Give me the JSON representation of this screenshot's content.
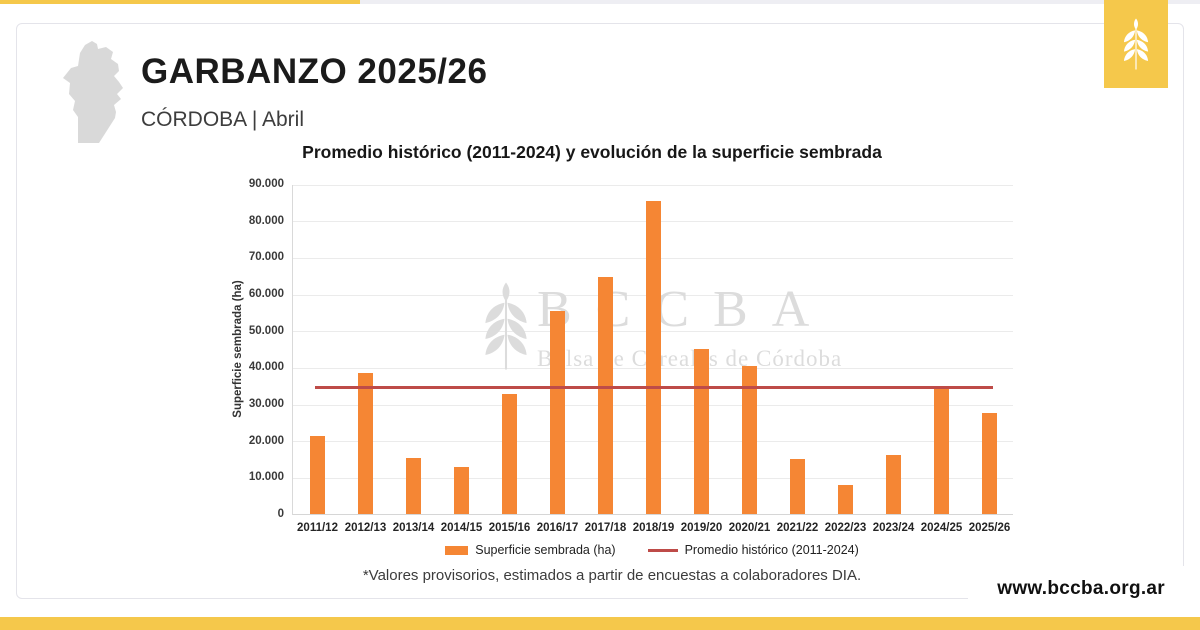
{
  "header": {
    "title": "GARBANZO 2025/26",
    "subtitle": "CÓRDOBA | Abril"
  },
  "watermark": {
    "acronym": "BCCBA",
    "name": "Bolsa de Cereales de Córdoba"
  },
  "footnote": "*Valores provisorios, estimados a partir de encuestas a colaboradores DIA.",
  "page": {
    "website": "www.bccba.org.ar"
  },
  "colors": {
    "brand_yellow": "#F5C84B",
    "bar_orange": "#F58634",
    "avg_line_red": "#BE4B48",
    "map_gray": "#D9D9D9",
    "watermark_gray": "#DCDCDC"
  },
  "chart_data": {
    "type": "bar",
    "title": "Promedio histórico (2011-2024) y evolución de la superficie sembrada",
    "xlabel": "",
    "ylabel": "Superficie sembrada (ha)",
    "ylim": [
      0,
      90000
    ],
    "ytick_step": 10000,
    "ytick_labels": [
      "0",
      "10.000",
      "20.000",
      "30.000",
      "40.000",
      "50.000",
      "60.000",
      "70.000",
      "80.000",
      "90.000"
    ],
    "grid": true,
    "legend_position": "bottom",
    "categories": [
      "2011/12",
      "2012/13",
      "2013/14",
      "2014/15",
      "2015/16",
      "2016/17",
      "2017/18",
      "2018/19",
      "2019/20",
      "2020/21",
      "2021/22",
      "2022/23",
      "2023/24",
      "2024/25",
      "2025/26"
    ],
    "series": [
      {
        "name": "Superficie sembrada (ha)",
        "values": [
          21300,
          38400,
          15300,
          12800,
          32700,
          55400,
          64700,
          85400,
          44900,
          40500,
          15100,
          7900,
          16200,
          34600,
          27500
        ]
      }
    ],
    "average_line": {
      "name": "Promedio histórico (2011-2024)",
      "value": 34700
    }
  }
}
